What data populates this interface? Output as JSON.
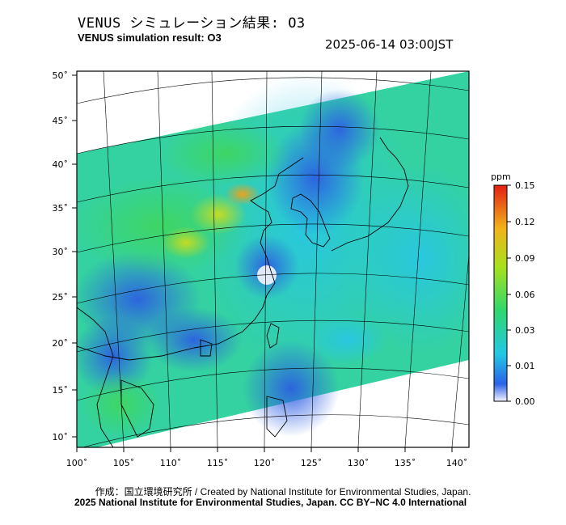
{
  "header": {
    "title_jp": "VENUS シミュレーション結果: O3",
    "title_en": "VENUS simulation result: O3",
    "timestamp": "2025-06-14 03:00JST"
  },
  "map": {
    "lon_ticks": [
      "100˚",
      "105˚",
      "110˚",
      "115˚",
      "120˚",
      "125˚",
      "130˚",
      "135˚",
      "140˚"
    ],
    "lat_ticks": [
      "10˚",
      "15˚",
      "20˚",
      "25˚",
      "30˚",
      "35˚",
      "40˚",
      "45˚",
      "50˚"
    ]
  },
  "colorbar": {
    "unit": "ppm",
    "ticks": [
      "0.15",
      "0.12",
      "0.09",
      "0.06",
      "0.03",
      "0.01",
      "0.00"
    ],
    "colors": [
      "#f4f4fc",
      "#2b62e8",
      "#22c8e4",
      "#2fd76e",
      "#a6e11e",
      "#f2b319",
      "#e31f14"
    ]
  },
  "footer": {
    "credit_line": "作成：国立環境研究所 / Created by National Institute for Environmental Studies, Japan.",
    "copyright_line": "2025 National Institute for Environmental Studies, Japan. CC BY−NC 4.0 International"
  }
}
